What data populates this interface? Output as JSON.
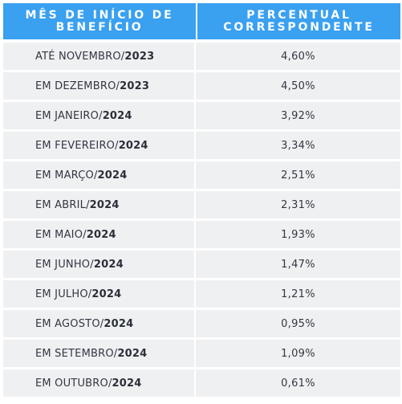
{
  "header": {
    "col1": "Mês de início de benefício",
    "col2": "Percentual correspondente"
  },
  "rows": [
    {
      "month": "ATÉ NOVEMBRO/",
      "year": "2023",
      "percent": "4,60%"
    },
    {
      "month": "EM DEZEMBRO/",
      "year": "2023",
      "percent": "4,50%"
    },
    {
      "month": "EM JANEIRO/",
      "year": "2024",
      "percent": "3,92%"
    },
    {
      "month": "EM FEVEREIRO/",
      "year": "2024",
      "percent": "3,34%"
    },
    {
      "month": "EM MARÇO/",
      "year": "2024",
      "percent": "2,51%"
    },
    {
      "month": "EM ABRIL/",
      "year": "2024",
      "percent": "2,31%"
    },
    {
      "month": "EM MAIO/",
      "year": "2024",
      "percent": "1,93%"
    },
    {
      "month": "EM JUNHO/",
      "year": "2024",
      "percent": "1,47%"
    },
    {
      "month": "EM JULHO/",
      "year": "2024",
      "percent": "1,21%"
    },
    {
      "month": "EM AGOSTO/",
      "year": "2024",
      "percent": "0,95%"
    },
    {
      "month": "EM SETEMBRO/",
      "year": "2024",
      "percent": "1,09%"
    },
    {
      "month": "EM OUTUBRO/",
      "year": "2024",
      "percent": "0,61%"
    }
  ],
  "colors": {
    "header_bg": "#3aa0f0",
    "row_bg": "#eff0f2"
  }
}
